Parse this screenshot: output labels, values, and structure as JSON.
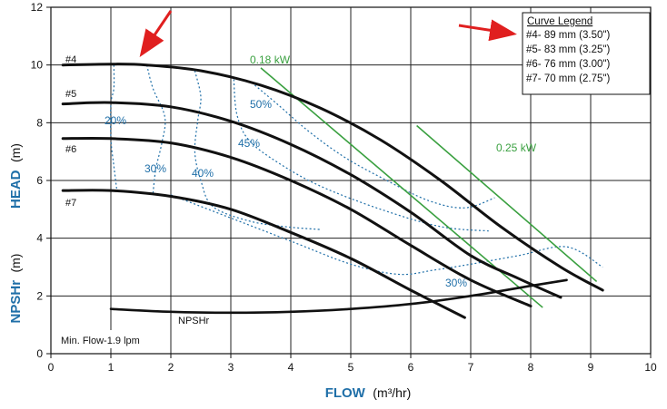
{
  "chart_data": {
    "type": "line",
    "title": "",
    "xlabel": "FLOW",
    "xlabel_unit": "(m³/hr)",
    "ylabel": "HEAD",
    "ylabel_unit": "(m)",
    "ylabel2": "NPSHr",
    "ylabel2_unit": "(m)",
    "xlim": [
      0,
      10
    ],
    "ylim": [
      0,
      12
    ],
    "x_ticks": [
      "0",
      "1",
      "2",
      "3",
      "4",
      "5",
      "6",
      "7",
      "8",
      "9",
      "10"
    ],
    "y_ticks": [
      "0",
      "2",
      "4",
      "6",
      "8",
      "10",
      "12"
    ],
    "grid": true,
    "legend": {
      "title": "Curve Legend",
      "placement": "top-right",
      "entries": [
        "#4- 89 mm (3.50\")",
        "#5- 83 mm (3.25\")",
        "#6- 76 mm (3.00\")",
        "#7- 70 mm (2.75\")"
      ]
    },
    "series": [
      {
        "name": "#4",
        "label": "#4",
        "x": [
          0.2,
          1.0,
          1.6,
          2.5,
          3.5,
          4.5,
          5.5,
          6.5,
          7.5,
          8.5,
          9.2
        ],
        "y": [
          10.0,
          10.03,
          10.0,
          9.8,
          9.3,
          8.5,
          7.4,
          6.0,
          4.4,
          3.0,
          2.2
        ]
      },
      {
        "name": "#5",
        "label": "#5",
        "x": [
          0.2,
          1.0,
          2.0,
          3.0,
          4.0,
          5.0,
          6.0,
          7.0,
          7.8,
          8.5
        ],
        "y": [
          8.65,
          8.7,
          8.55,
          8.05,
          7.25,
          6.2,
          4.9,
          3.4,
          2.6,
          1.95
        ]
      },
      {
        "name": "#6",
        "label": "#6",
        "x": [
          0.2,
          1.0,
          2.0,
          3.0,
          4.0,
          5.0,
          6.0,
          7.0,
          8.0
        ],
        "y": [
          7.45,
          7.45,
          7.3,
          6.8,
          6.0,
          5.0,
          3.75,
          2.55,
          1.65
        ]
      },
      {
        "name": "#7",
        "label": "#7",
        "x": [
          0.2,
          1.0,
          2.0,
          3.0,
          4.0,
          5.0,
          6.0,
          6.9
        ],
        "y": [
          5.65,
          5.65,
          5.45,
          5.0,
          4.2,
          3.3,
          2.2,
          1.25
        ]
      },
      {
        "name": "NPSHr",
        "label": "NPSHr",
        "x": [
          1.0,
          2.0,
          3.0,
          4.0,
          5.0,
          6.0,
          7.0,
          8.0,
          8.6
        ],
        "y": [
          1.55,
          1.45,
          1.42,
          1.45,
          1.55,
          1.72,
          2.0,
          2.35,
          2.55
        ]
      }
    ],
    "efficiency_contours": [
      {
        "label": "20%",
        "x": [
          1.05,
          1.05,
          1.0,
          1.0,
          1.05,
          1.1
        ],
        "y": [
          10.0,
          9.2,
          8.65,
          7.45,
          6.5,
          5.65
        ]
      },
      {
        "label": "30%",
        "x": [
          1.6,
          1.7,
          1.9,
          1.85,
          1.75,
          1.7
        ],
        "y": [
          10.0,
          9.2,
          8.2,
          7.3,
          6.4,
          5.5
        ]
      },
      {
        "label": "40%",
        "x": [
          2.4,
          2.5,
          2.45,
          2.4,
          2.5,
          2.7,
          3.3,
          3.9,
          4.5
        ],
        "y": [
          9.8,
          8.9,
          8.1,
          7.0,
          6.0,
          5.1,
          4.6,
          4.4,
          4.3
        ]
      },
      {
        "label": "45%",
        "x": [
          3.05,
          3.1,
          3.3,
          3.8,
          4.5,
          5.5,
          6.5,
          7.3
        ],
        "y": [
          9.5,
          8.3,
          7.4,
          6.6,
          5.8,
          5.0,
          4.4,
          4.25
        ]
      },
      {
        "label": "50%",
        "x": [
          3.4,
          3.8,
          4.3,
          4.9,
          5.6,
          6.3,
          6.9,
          7.4
        ],
        "y": [
          9.3,
          8.6,
          7.7,
          6.8,
          6.0,
          5.3,
          5.05,
          5.4
        ]
      },
      {
        "label": "30%",
        "x": [
          2.0,
          3.0,
          4.0,
          5.0,
          5.8,
          6.4,
          7.0,
          7.8,
          8.6,
          9.2
        ],
        "y": [
          5.5,
          4.7,
          3.9,
          3.1,
          2.75,
          2.9,
          3.1,
          3.4,
          3.7,
          3.0
        ]
      }
    ],
    "power_lines": [
      {
        "label": "0.18 kW",
        "x": [
          3.5,
          8.2
        ],
        "y": [
          9.9,
          1.6
        ]
      },
      {
        "label": "0.25 kW",
        "x": [
          6.1,
          9.1
        ],
        "y": [
          7.9,
          2.5
        ]
      }
    ],
    "annotations": [
      {
        "text": "Min. Flow-1.9 lpm"
      },
      {
        "text": "NPSHr"
      }
    ]
  }
}
